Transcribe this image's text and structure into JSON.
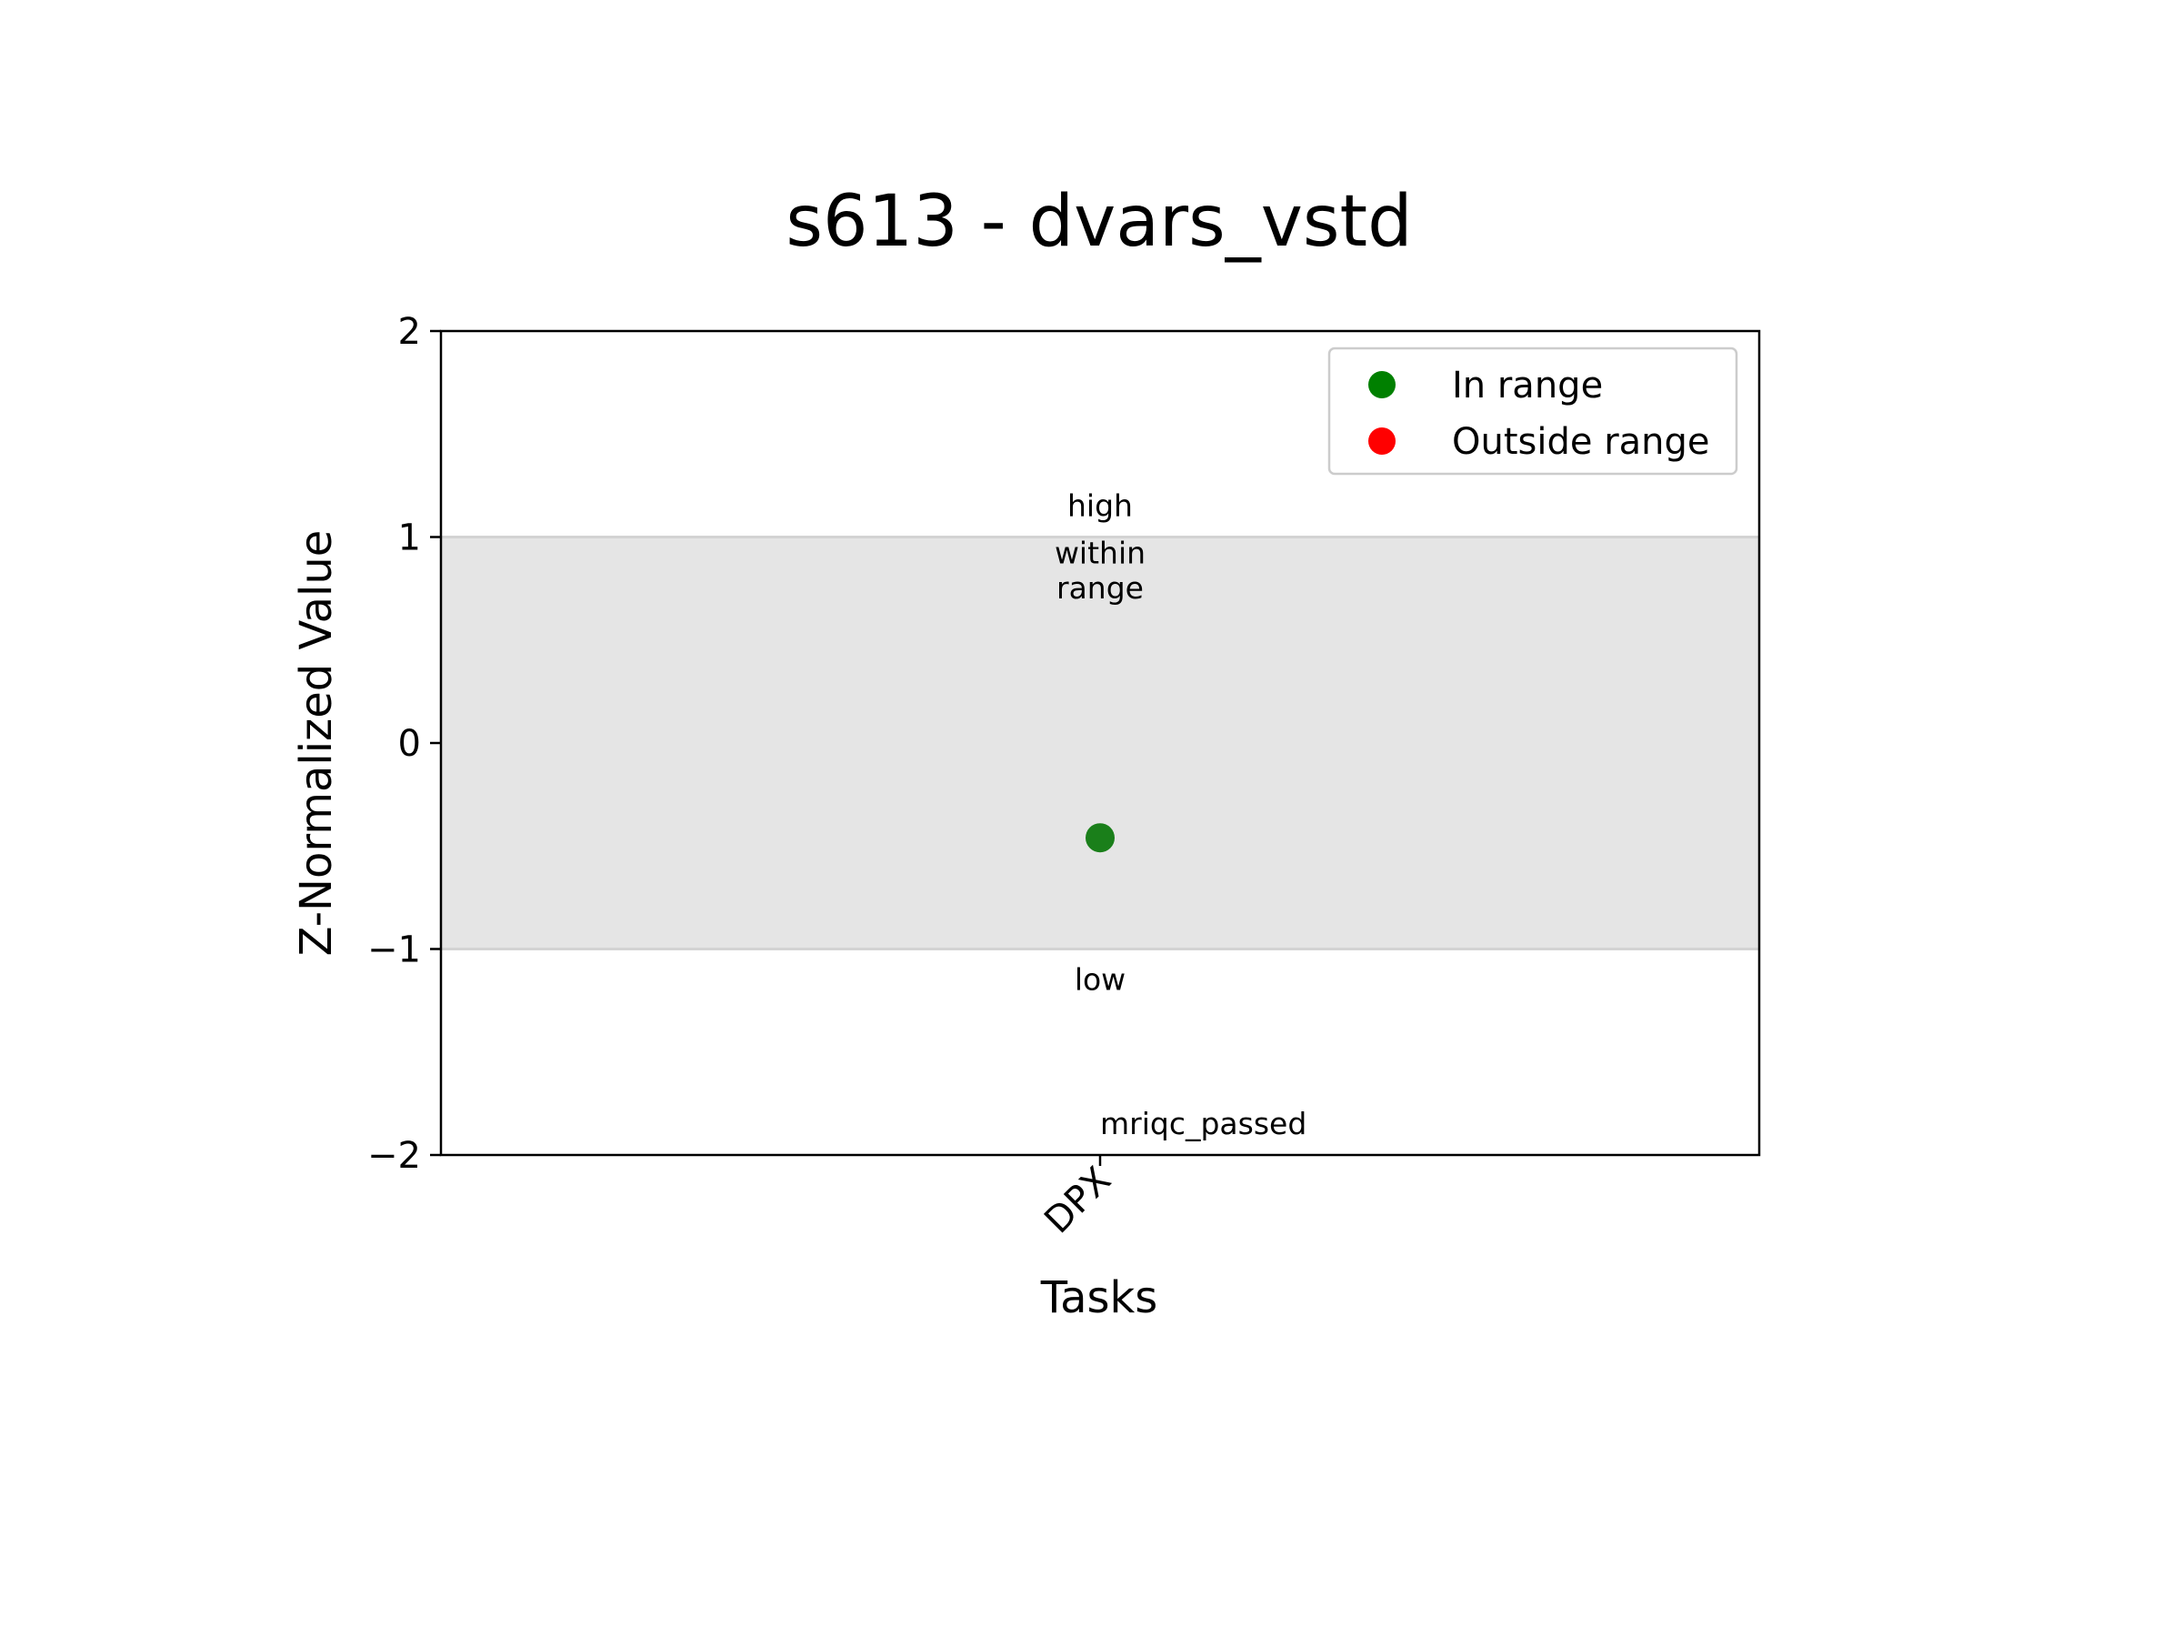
{
  "chart_data": {
    "type": "scatter",
    "title": "s613 - dvars_vstd",
    "xlabel": "Tasks",
    "ylabel": "Z-Normalized Value",
    "categories": [
      "DPX"
    ],
    "ylim": [
      -2,
      2
    ],
    "yticks": [
      2,
      1,
      0,
      -1,
      -2
    ],
    "ytick_labels": [
      "2",
      "1",
      "0",
      "−1",
      "−2"
    ],
    "grid": false,
    "band": {
      "from": -1,
      "to": 1,
      "color": "#e5e5e5",
      "line_color": "#d3d3d3"
    },
    "points": [
      {
        "category": "DPX",
        "y": -0.46,
        "status": "In range",
        "color": "#1a7f1a"
      }
    ],
    "annotations": [
      {
        "text": "high",
        "category": "DPX",
        "y": 1.15
      },
      {
        "text": "within",
        "category": "DPX",
        "y": 0.92
      },
      {
        "text": "range",
        "category": "DPX",
        "y": 0.75
      },
      {
        "text": "low",
        "category": "DPX",
        "y": -1.15
      },
      {
        "text": "mriqc_passed",
        "category": "DPX",
        "y": -1.85,
        "align": "start"
      }
    ],
    "legend": {
      "position": "top-right",
      "entries": [
        {
          "label": "In range",
          "color": "#008000"
        },
        {
          "label": "Outside range",
          "color": "#ff0000"
        }
      ]
    }
  }
}
